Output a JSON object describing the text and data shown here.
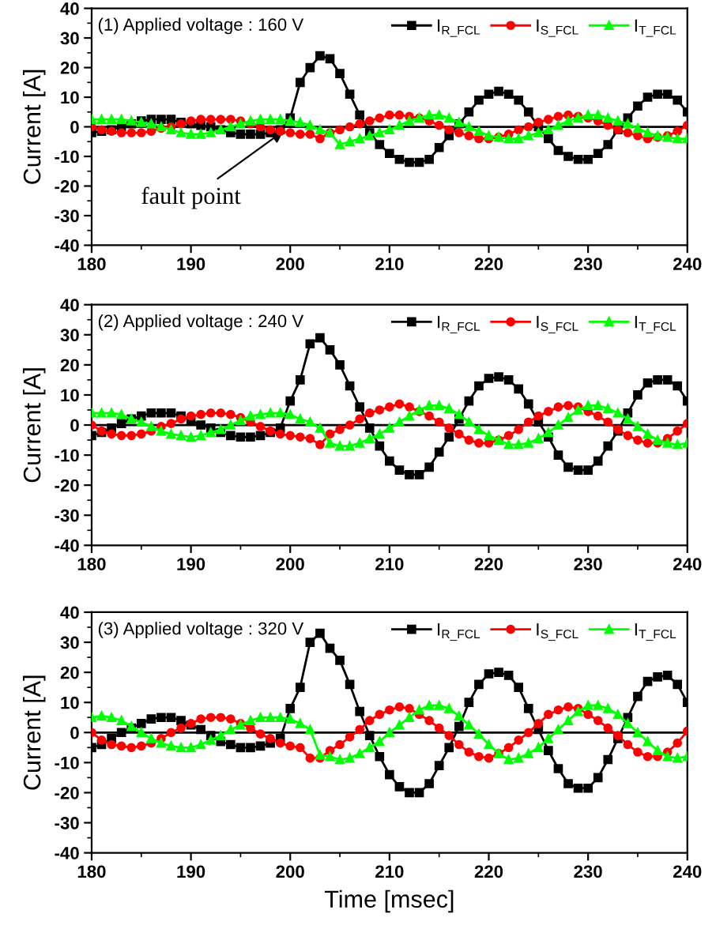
{
  "chart_data": [
    {
      "type": "line",
      "title": "(1) Applied voltage : 160 V",
      "ylabel": "Current [A]",
      "x": [
        180,
        181,
        182,
        183,
        184,
        185,
        186,
        187,
        188,
        189,
        190,
        191,
        192,
        193,
        194,
        195,
        196,
        197,
        198,
        199,
        200,
        201,
        202,
        203,
        204,
        205,
        206,
        207,
        208,
        209,
        210,
        211,
        212,
        213,
        214,
        215,
        216,
        217,
        218,
        219,
        220,
        221,
        222,
        223,
        224,
        225,
        226,
        227,
        228,
        229,
        230,
        231,
        232,
        233,
        234,
        235,
        236,
        237,
        238,
        239,
        240
      ],
      "xlim": [
        180,
        240
      ],
      "xticks": [
        180,
        190,
        200,
        210,
        220,
        230,
        240
      ],
      "ylim": [
        -40,
        40
      ],
      "yticks": [
        -40,
        -30,
        -20,
        -10,
        0,
        10,
        20,
        30,
        40
      ],
      "grid": false,
      "legend": "top right",
      "ref_lines": [
        {
          "axis": "y",
          "value": 0,
          "color": "#000000"
        }
      ],
      "annotations": [
        {
          "text": "fault point",
          "x": 199.5,
          "y": -1
        }
      ],
      "series": [
        {
          "name": "I$_{R_FCL}$",
          "color": "#000000",
          "marker": "square",
          "values": [
            -2,
            -1.5,
            -1,
            0,
            1,
            2,
            2.5,
            2.5,
            2.5,
            1.5,
            1,
            0.5,
            0,
            -1,
            -2,
            -2.5,
            -2.5,
            -2.5,
            -2,
            -1,
            3,
            15,
            20,
            24,
            23,
            18,
            11,
            4,
            -2,
            -6,
            -9,
            -11,
            -12,
            -12,
            -11,
            -7,
            -3,
            1,
            5,
            9,
            11,
            12,
            11,
            9,
            5,
            0,
            -4,
            -8,
            -10,
            -11,
            -11,
            -9,
            -6,
            -1,
            3,
            7,
            10,
            11,
            11,
            9,
            5
          ]
        },
        {
          "name": "I$_{S_FCL}$",
          "color": "#ff0000",
          "marker": "circle",
          "values": [
            0,
            -1,
            -1.5,
            -2,
            -2,
            -2,
            -1.5,
            -0.5,
            0,
            1,
            2,
            2.5,
            2.5,
            2.5,
            2.5,
            2,
            1,
            0,
            -1,
            -1.5,
            -2,
            -2.5,
            -2.5,
            -4,
            -2,
            -1,
            0,
            1,
            2,
            3,
            4,
            4,
            3.5,
            3,
            2,
            0.5,
            -1,
            -2,
            -3,
            -4,
            -4,
            -3.5,
            -2.5,
            -1,
            0,
            1.5,
            2.5,
            3.5,
            4,
            3.5,
            3,
            2,
            0.5,
            -1,
            -2,
            -3,
            -4,
            -3.5,
            -3,
            -1.5,
            0.5
          ]
        },
        {
          "name": "I$_{T_FCL}$",
          "color": "#00ff00",
          "marker": "triangle",
          "values": [
            2.5,
            2.5,
            2.5,
            2.5,
            2,
            1.5,
            1,
            0,
            -1,
            -2,
            -2.5,
            -2.5,
            -2,
            -1,
            0,
            1,
            2,
            2.5,
            2.5,
            2.5,
            2,
            1.5,
            0.5,
            -1,
            -2,
            -6,
            -5,
            -4,
            -3,
            -2,
            -1,
            0.5,
            2,
            3,
            4,
            4,
            3,
            1.5,
            0,
            -1.5,
            -3,
            -3.5,
            -4,
            -4,
            -3,
            -2,
            -1,
            0.5,
            2,
            3,
            4,
            4,
            3,
            2,
            1,
            -0.5,
            -2,
            -3,
            -3.5,
            -4,
            -4
          ]
        }
      ]
    },
    {
      "type": "line",
      "title": "(2) Applied voltage : 240 V",
      "ylabel": "Current [A]",
      "x": [
        180,
        181,
        182,
        183,
        184,
        185,
        186,
        187,
        188,
        189,
        190,
        191,
        192,
        193,
        194,
        195,
        196,
        197,
        198,
        199,
        200,
        201,
        202,
        203,
        204,
        205,
        206,
        207,
        208,
        209,
        210,
        211,
        212,
        213,
        214,
        215,
        216,
        217,
        218,
        219,
        220,
        221,
        222,
        223,
        224,
        225,
        226,
        227,
        228,
        229,
        230,
        231,
        232,
        233,
        234,
        235,
        236,
        237,
        238,
        239,
        240
      ],
      "xlim": [
        180,
        240
      ],
      "xticks": [
        180,
        190,
        200,
        210,
        220,
        230,
        240
      ],
      "ylim": [
        -40,
        40
      ],
      "yticks": [
        -40,
        -30,
        -20,
        -10,
        0,
        10,
        20,
        30,
        40
      ],
      "grid": false,
      "legend": "top right",
      "ref_lines": [
        {
          "axis": "y",
          "value": 0,
          "color": "#000000"
        }
      ],
      "series": [
        {
          "name": "I$_{R_FCL}$",
          "color": "#000000",
          "marker": "square",
          "values": [
            -3.5,
            -2.5,
            -1,
            0.5,
            2,
            3,
            4,
            4,
            4,
            3,
            1.5,
            0,
            -1,
            -2.5,
            -3.5,
            -4,
            -4,
            -3.5,
            -2.5,
            -1,
            8,
            15,
            27,
            29,
            25,
            20,
            13,
            6,
            -1,
            -7,
            -12,
            -15,
            -16.5,
            -16.5,
            -14,
            -9,
            -4,
            2,
            8,
            13,
            15.5,
            16,
            15,
            12,
            7,
            1,
            -4,
            -10,
            -14,
            -15,
            -15,
            -12,
            -7,
            -2,
            4,
            10,
            14,
            15,
            15,
            13,
            8
          ]
        },
        {
          "name": "I$_{S_FCL}$",
          "color": "#ff0000",
          "marker": "circle",
          "values": [
            0,
            -2,
            -3,
            -3.5,
            -3.5,
            -3,
            -2,
            -0.5,
            0.5,
            2,
            3,
            3.5,
            4,
            4,
            3.5,
            2.5,
            1,
            -0.5,
            -2,
            -3,
            -3.5,
            -4,
            -4.5,
            -6.5,
            -3,
            -1.5,
            0,
            2,
            4,
            5,
            6,
            7,
            6,
            4.5,
            3,
            1,
            -1,
            -3,
            -5,
            -6,
            -6,
            -5,
            -3.5,
            -1.5,
            1,
            3,
            4.5,
            6,
            6.5,
            6,
            4.5,
            3,
            1,
            -1.5,
            -3.5,
            -5,
            -6,
            -6,
            -4.5,
            -2,
            0.5
          ]
        },
        {
          "name": "I$_{T_FCL}$",
          "color": "#00ff00",
          "marker": "triangle",
          "values": [
            4,
            4,
            4,
            3.5,
            2,
            1,
            -0.5,
            -2,
            -3,
            -3.5,
            -4,
            -3.5,
            -2.5,
            -1.5,
            0,
            1.5,
            3,
            3.5,
            4,
            4,
            3.5,
            2,
            1,
            -1,
            -6,
            -7,
            -7,
            -6,
            -4.5,
            -3,
            -1,
            1,
            3,
            5,
            6.5,
            6.5,
            5.5,
            3.5,
            1,
            -1.5,
            -3.5,
            -5,
            -6.5,
            -6.5,
            -6,
            -4.5,
            -2.5,
            0,
            2.5,
            5,
            6.5,
            6.5,
            5.5,
            4,
            2,
            -0.5,
            -3,
            -5,
            -6,
            -6.5,
            -6
          ]
        }
      ]
    },
    {
      "type": "line",
      "title": "(3) Applied voltage : 320 V",
      "ylabel": "Current [A]",
      "xlabel": "Time [msec]",
      "x": [
        180,
        181,
        182,
        183,
        184,
        185,
        186,
        187,
        188,
        189,
        190,
        191,
        192,
        193,
        194,
        195,
        196,
        197,
        198,
        199,
        200,
        201,
        202,
        203,
        204,
        205,
        206,
        207,
        208,
        209,
        210,
        211,
        212,
        213,
        214,
        215,
        216,
        217,
        218,
        219,
        220,
        221,
        222,
        223,
        224,
        225,
        226,
        227,
        228,
        229,
        230,
        231,
        232,
        233,
        234,
        235,
        236,
        237,
        238,
        239,
        240
      ],
      "xlim": [
        180,
        240
      ],
      "xticks": [
        180,
        190,
        200,
        210,
        220,
        230,
        240
      ],
      "ylim": [
        -40,
        40
      ],
      "yticks": [
        -40,
        -30,
        -20,
        -10,
        0,
        10,
        20,
        30,
        40
      ],
      "grid": false,
      "legend": "top right",
      "ref_lines": [
        {
          "axis": "y",
          "value": 0,
          "color": "#000000"
        }
      ],
      "series": [
        {
          "name": "I$_{R_FCL}$",
          "color": "#000000",
          "marker": "square",
          "values": [
            -5,
            -4,
            -2,
            0,
            1.5,
            3,
            4.5,
            5,
            5,
            4,
            2.5,
            1,
            -1,
            -3,
            -4,
            -5,
            -5,
            -4.5,
            -3.5,
            -2,
            8,
            15,
            30,
            33,
            28,
            24,
            16,
            7,
            -1,
            -8,
            -14,
            -18,
            -20,
            -20,
            -17,
            -11,
            -5,
            2,
            10,
            16,
            19.5,
            20,
            19,
            15,
            8,
            1,
            -6,
            -12,
            -17,
            -18.5,
            -18.5,
            -15,
            -9,
            -2,
            5,
            12,
            17,
            18.5,
            19,
            16,
            10
          ]
        },
        {
          "name": "I$_{S_FCL}$",
          "color": "#ff0000",
          "marker": "circle",
          "values": [
            0,
            -2.5,
            -4,
            -4.5,
            -5,
            -4.5,
            -3.5,
            -2,
            0,
            1.5,
            3,
            4.5,
            5,
            5,
            4.5,
            3,
            1.5,
            -0.5,
            -2,
            -3.5,
            -4.5,
            -5,
            -8.5,
            -8.5,
            -6,
            -4,
            -1.5,
            1,
            4,
            6,
            7.5,
            8.5,
            8,
            6,
            4,
            1.5,
            -1,
            -4,
            -6.5,
            -8,
            -8.5,
            -7,
            -5,
            -2.5,
            0,
            3,
            6,
            7.5,
            8.5,
            8,
            6,
            4,
            1.5,
            -1,
            -4,
            -6.5,
            -8,
            -8,
            -6.5,
            -3.5,
            0.5
          ]
        },
        {
          "name": "I$_{T_FCL}$",
          "color": "#00ff00",
          "marker": "triangle",
          "values": [
            5,
            5.5,
            5,
            4,
            2,
            0,
            -2,
            -3.5,
            -4.5,
            -5,
            -5,
            -4,
            -2.5,
            -1,
            1,
            2.5,
            4,
            5,
            5,
            5,
            4.5,
            3,
            1,
            -7.5,
            -8,
            -9,
            -8.5,
            -7,
            -5,
            -3,
            0,
            2.5,
            5,
            7.5,
            9,
            9,
            8,
            5.5,
            2.5,
            -0.5,
            -4,
            -7,
            -9,
            -8.5,
            -7,
            -5,
            -2,
            1,
            4,
            7,
            9,
            9,
            8,
            6,
            3,
            0,
            -3,
            -6,
            -8,
            -8.5,
            -8
          ]
        }
      ]
    }
  ]
}
